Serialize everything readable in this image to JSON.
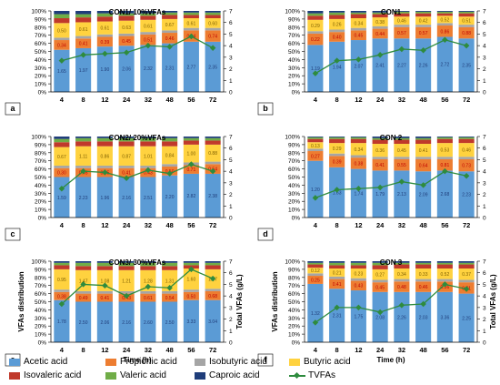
{
  "colors": {
    "Acetic acid": "#5b9bd5",
    "Propionic acid": "#ed7d31",
    "Isobutyric acid": "#a5a5a5",
    "Butyric acid": "#ffd23f",
    "Isovaleric acid": "#c0392b",
    "Valeric acid": "#70ad47",
    "Caproic acid": "#1f3d7a",
    "TVFAs": "#2e8b3e"
  },
  "legend": {
    "items": [
      "Acetic acid",
      "Propionic acid",
      "Isobutyric acid",
      "Butyric acid",
      "Isovaleric acid",
      "Valeric acid",
      "Caproic acid",
      "TVFAs"
    ]
  },
  "chart_data": [
    {
      "type": "bar",
      "panel": "a",
      "title": "CON1/ 10%VFAs",
      "categories": [
        "4",
        "8",
        "12",
        "24",
        "32",
        "48",
        "56",
        "72"
      ],
      "series": [
        {
          "name": "Acetic acid",
          "values": [
            52,
            54,
            56,
            57,
            58,
            60,
            62,
            62
          ],
          "labels": [
            "1.65",
            "1.97",
            "1.90",
            "2.06",
            "2.32",
            "2.31",
            "2.77",
            "2.35"
          ]
        },
        {
          "name": "Propionic acid",
          "values": [
            12,
            12,
            12,
            12,
            13,
            13,
            14,
            14
          ],
          "labels": [
            "0.34",
            "0.41",
            "0.39",
            "0.45",
            "0.51",
            "0.46",
            "0.64",
            "0.74"
          ]
        },
        {
          "name": "Isobutyric acid",
          "values": [
            3,
            3,
            3,
            3,
            3,
            3,
            3,
            3
          ]
        },
        {
          "name": "Butyric acid",
          "values": [
            18,
            17,
            16,
            16,
            15,
            14,
            12,
            12
          ],
          "labels": [
            "0.50",
            "0.61",
            "0.61",
            "0.63",
            "0.61",
            "0.67",
            "0.61",
            "0.60"
          ]
        },
        {
          "name": "Isovaleric acid",
          "values": [
            6,
            6,
            6,
            6,
            5,
            5,
            4,
            4
          ]
        },
        {
          "name": "Valeric acid",
          "values": [
            5,
            4,
            4,
            3,
            3,
            3,
            3,
            3
          ]
        },
        {
          "name": "Caproic acid",
          "values": [
            4,
            4,
            3,
            3,
            3,
            2,
            2,
            2
          ]
        }
      ],
      "line": {
        "name": "TVFAs",
        "values": [
          2.7,
          3.2,
          3.3,
          3.4,
          4.0,
          3.9,
          4.8,
          3.8
        ]
      },
      "ylim": [
        0,
        100
      ],
      "y2lim": [
        0,
        7
      ],
      "yticks": [
        "0%",
        "10%",
        "20%",
        "30%",
        "40%",
        "50%",
        "60%",
        "70%",
        "80%",
        "90%",
        "100%"
      ],
      "y2ticks": [
        "0",
        "1",
        "2",
        "3",
        "4",
        "5",
        "6",
        "7"
      ],
      "xlabel": "",
      "ylabel": "",
      "y2label": ""
    },
    {
      "type": "bar",
      "panel": "b",
      "title": "CON1",
      "categories": [
        "4",
        "8",
        "12",
        "24",
        "32",
        "48",
        "56",
        "72"
      ],
      "series": [
        {
          "name": "Acetic acid",
          "values": [
            58,
            62,
            64,
            66,
            66,
            66,
            68,
            66
          ],
          "labels": [
            "1.19",
            "1.94",
            "2.07",
            "2.41",
            "2.27",
            "2.26",
            "2.72",
            "2.35"
          ]
        },
        {
          "name": "Propionic acid",
          "values": [
            14,
            12,
            12,
            12,
            14,
            14,
            14,
            14
          ],
          "labels": [
            "0.22",
            "0.40",
            "0.45",
            "0.44",
            "0.57",
            "0.57",
            "0.86",
            "0.88"
          ]
        },
        {
          "name": "Isobutyric acid",
          "values": [
            3,
            3,
            3,
            3,
            3,
            3,
            3,
            3
          ]
        },
        {
          "name": "Butyric acid",
          "values": [
            14,
            13,
            12,
            11,
            10,
            10,
            9,
            10
          ],
          "labels": [
            "0.29",
            "0.26",
            "0.34",
            "0.38",
            "0.46",
            "0.42",
            "0.52",
            "0.51"
          ]
        },
        {
          "name": "Isovaleric acid",
          "values": [
            5,
            5,
            5,
            4,
            4,
            4,
            3,
            4
          ]
        },
        {
          "name": "Valeric acid",
          "values": [
            3,
            3,
            2,
            2,
            2,
            2,
            2,
            2
          ]
        },
        {
          "name": "Caproic acid",
          "values": [
            3,
            2,
            2,
            2,
            1,
            1,
            1,
            1
          ]
        }
      ],
      "line": {
        "name": "TVFAs",
        "values": [
          1.6,
          2.7,
          2.8,
          3.2,
          3.7,
          3.6,
          4.5,
          4.0
        ]
      },
      "ylim": [
        0,
        100
      ],
      "y2lim": [
        0,
        7
      ],
      "yticks": [
        "0%",
        "10%",
        "20%",
        "30%",
        "40%",
        "50%",
        "60%",
        "70%",
        "80%",
        "90%",
        "100%"
      ],
      "y2ticks": [
        "0",
        "1",
        "2",
        "3",
        "4",
        "5",
        "6",
        "7"
      ],
      "xlabel": "",
      "ylabel": "",
      "y2label": ""
    },
    {
      "type": "bar",
      "panel": "c",
      "title": "CON2/ 20%VFAs",
      "categories": [
        "4",
        "8",
        "12",
        "24",
        "32",
        "48",
        "56",
        "72"
      ],
      "series": [
        {
          "name": "Acetic acid",
          "values": [
            50,
            50,
            50,
            50,
            50,
            52,
            54,
            54
          ],
          "labels": [
            "1.59",
            "2.23",
            "1.96",
            "2.16",
            "2.51",
            "2.20",
            "2.82",
            "2.38"
          ]
        },
        {
          "name": "Propionic acid",
          "values": [
            11,
            11,
            11,
            11,
            11,
            11,
            11,
            12
          ],
          "labels": [
            "0.30",
            "0.45",
            "0.45",
            "0.41",
            "0.43",
            "0.50",
            "0.71",
            "0.54"
          ]
        },
        {
          "name": "Isobutyric acid",
          "values": [
            3,
            3,
            3,
            3,
            3,
            3,
            3,
            3
          ]
        },
        {
          "name": "Butyric acid",
          "values": [
            23,
            24,
            24,
            24,
            24,
            22,
            22,
            21
          ],
          "labels": [
            "0.67",
            "1.11",
            "0.86",
            "0.87",
            "1.01",
            "0.84",
            "1.00",
            "0.88"
          ]
        },
        {
          "name": "Isovaleric acid",
          "values": [
            6,
            6,
            6,
            6,
            6,
            6,
            5,
            5
          ]
        },
        {
          "name": "Valeric acid",
          "values": [
            4,
            4,
            4,
            4,
            4,
            4,
            3,
            3
          ]
        },
        {
          "name": "Caproic acid",
          "values": [
            3,
            2,
            2,
            2,
            2,
            2,
            2,
            2
          ]
        }
      ],
      "line": {
        "name": "TVFAs",
        "values": [
          2.5,
          4.0,
          3.9,
          3.4,
          4.1,
          3.8,
          4.6,
          4.0
        ]
      },
      "ylim": [
        0,
        100
      ],
      "y2lim": [
        0,
        7
      ],
      "yticks": [
        "0%",
        "10%",
        "20%",
        "30%",
        "40%",
        "50%",
        "60%",
        "70%",
        "80%",
        "90%",
        "100%"
      ],
      "y2ticks": [
        "0",
        "1",
        "2",
        "3",
        "4",
        "5",
        "6",
        "7"
      ],
      "xlabel": "",
      "ylabel": "",
      "y2label": ""
    },
    {
      "type": "bar",
      "panel": "d",
      "title": "CON 2",
      "categories": [
        "4",
        "8",
        "12",
        "24",
        "32",
        "48",
        "56",
        "72"
      ],
      "series": [
        {
          "name": "Acetic acid",
          "values": [
            70,
            62,
            60,
            58,
            58,
            57,
            58,
            57
          ],
          "labels": [
            "1.20",
            "1.63",
            "1.74",
            "1.79",
            "2.13",
            "2.09",
            "2.68",
            "2.23"
          ]
        },
        {
          "name": "Propionic acid",
          "values": [
            12,
            14,
            14,
            14,
            14,
            15,
            14,
            15
          ],
          "labels": [
            "0.27",
            "0.39",
            "0.38",
            "0.41",
            "0.55",
            "0.64",
            "0.81",
            "0.73"
          ]
        },
        {
          "name": "Isobutyric acid",
          "values": [
            3,
            3,
            3,
            3,
            3,
            3,
            3,
            3
          ]
        },
        {
          "name": "Butyric acid",
          "values": [
            8,
            13,
            15,
            16,
            16,
            16,
            17,
            17
          ],
          "labels": [
            "0.13",
            "0.29",
            "0.34",
            "0.36",
            "0.45",
            "0.41",
            "0.53",
            "0.46"
          ]
        },
        {
          "name": "Isovaleric acid",
          "values": [
            4,
            5,
            5,
            5,
            5,
            5,
            5,
            5
          ]
        },
        {
          "name": "Valeric acid",
          "values": [
            2,
            2,
            2,
            2,
            2,
            2,
            2,
            2
          ]
        },
        {
          "name": "Caproic acid",
          "values": [
            1,
            1,
            1,
            2,
            2,
            2,
            1,
            1
          ]
        }
      ],
      "line": {
        "name": "TVFAs",
        "values": [
          1.7,
          2.4,
          2.5,
          2.6,
          3.1,
          2.8,
          4.0,
          3.6
        ]
      },
      "ylim": [
        0,
        100
      ],
      "y2lim": [
        0,
        7
      ],
      "yticks": [
        "0%",
        "10%",
        "20%",
        "30%",
        "40%",
        "50%",
        "60%",
        "70%",
        "80%",
        "90%",
        "100%"
      ],
      "y2ticks": [
        "0",
        "1",
        "2",
        "3",
        "4",
        "5",
        "6",
        "7"
      ],
      "xlabel": "",
      "ylabel": "",
      "y2label": ""
    },
    {
      "type": "bar",
      "panel": "e",
      "title": "CON3/ 30%VFAs",
      "categories": [
        "4",
        "8",
        "12",
        "24",
        "32",
        "48",
        "56",
        "72"
      ],
      "series": [
        {
          "name": "Acetic acid",
          "values": [
            52,
            50,
            50,
            50,
            50,
            50,
            52,
            52
          ],
          "labels": [
            "1.78",
            "2.50",
            "2.06",
            "2.16",
            "2.60",
            "2.50",
            "3.33",
            "3.04"
          ]
        },
        {
          "name": "Propionic acid",
          "values": [
            10,
            10,
            10,
            10,
            10,
            10,
            10,
            11
          ],
          "labels": [
            "0.38",
            "0.49",
            "0.41",
            "0.43",
            "0.61",
            "0.54",
            "0.50",
            "0.68"
          ]
        },
        {
          "name": "Isobutyric acid",
          "values": [
            3,
            3,
            3,
            3,
            3,
            3,
            3,
            3
          ]
        },
        {
          "name": "Butyric acid",
          "values": [
            25,
            26,
            26,
            26,
            26,
            26,
            26,
            24
          ],
          "labels": [
            "0.95",
            "1.47",
            "1.08",
            "1.21",
            "1.28",
            "1.31",
            "1.60",
            "1.37"
          ]
        },
        {
          "name": "Isovaleric acid",
          "values": [
            5,
            5,
            5,
            5,
            5,
            5,
            4,
            5
          ]
        },
        {
          "name": "Valeric acid",
          "values": [
            3,
            4,
            4,
            4,
            4,
            4,
            3,
            3
          ]
        },
        {
          "name": "Caproic acid",
          "values": [
            2,
            2,
            2,
            2,
            2,
            2,
            2,
            2
          ]
        }
      ],
      "line": {
        "name": "TVFAs",
        "values": [
          3.3,
          5.0,
          4.9,
          4.0,
          4.8,
          4.7,
          6.3,
          5.5
        ]
      },
      "ylim": [
        0,
        100
      ],
      "y2lim": [
        0,
        7
      ],
      "yticks": [
        "0%",
        "10%",
        "20%",
        "30%",
        "40%",
        "50%",
        "60%",
        "70%",
        "80%",
        "90%",
        "100%"
      ],
      "y2ticks": [
        "0",
        "1",
        "2",
        "3",
        "4",
        "5",
        "6",
        "7"
      ],
      "xlabel": "Time (h)",
      "ylabel": "VFAs distribution",
      "y2label": "Total VFAs (g/L)"
    },
    {
      "type": "bar",
      "panel": "f",
      "title": "CON 3",
      "categories": [
        "4",
        "8",
        "12",
        "24",
        "32",
        "48",
        "56",
        "72"
      ],
      "series": [
        {
          "name": "Acetic acid",
          "values": [
            72,
            66,
            64,
            62,
            62,
            62,
            62,
            60
          ],
          "labels": [
            "1.32",
            "2.31",
            "1.75",
            "2.08",
            "2.26",
            "2.03",
            "3.36",
            "2.25"
          ]
        },
        {
          "name": "Propionic acid",
          "values": [
            10,
            12,
            12,
            12,
            13,
            13,
            13,
            14
          ],
          "labels": [
            "0.25",
            "0.41",
            "0.43",
            "0.45",
            "0.48",
            "0.46",
            "0.56",
            "0.71"
          ]
        },
        {
          "name": "Isobutyric acid",
          "values": [
            3,
            3,
            3,
            3,
            3,
            3,
            3,
            3
          ]
        },
        {
          "name": "Butyric acid",
          "values": [
            7,
            10,
            12,
            13,
            13,
            13,
            13,
            14
          ],
          "labels": [
            "0.12",
            "0.21",
            "0.23",
            "0.27",
            "0.34",
            "0.33",
            "0.52",
            "0.37"
          ]
        },
        {
          "name": "Isovaleric acid",
          "values": [
            4,
            4,
            4,
            5,
            5,
            5,
            5,
            5
          ]
        },
        {
          "name": "Valeric acid",
          "values": [
            2,
            3,
            3,
            3,
            2,
            2,
            2,
            2
          ]
        },
        {
          "name": "Caproic acid",
          "values": [
            2,
            2,
            2,
            2,
            2,
            2,
            2,
            2
          ]
        }
      ],
      "line": {
        "name": "TVFAs",
        "values": [
          1.7,
          3.0,
          3.0,
          2.6,
          3.2,
          3.3,
          5.0,
          4.6
        ]
      },
      "ylim": [
        0,
        100
      ],
      "y2lim": [
        0,
        7
      ],
      "yticks": [
        "0%",
        "10%",
        "20%",
        "30%",
        "40%",
        "50%",
        "60%",
        "70%",
        "80%",
        "90%",
        "100%"
      ],
      "y2ticks": [
        "0",
        "1",
        "2",
        "3",
        "4",
        "5",
        "6",
        "7"
      ],
      "xlabel": "Time (h)",
      "ylabel": "VFAs distribution",
      "y2label": "Total VFAs (g/L)"
    }
  ]
}
